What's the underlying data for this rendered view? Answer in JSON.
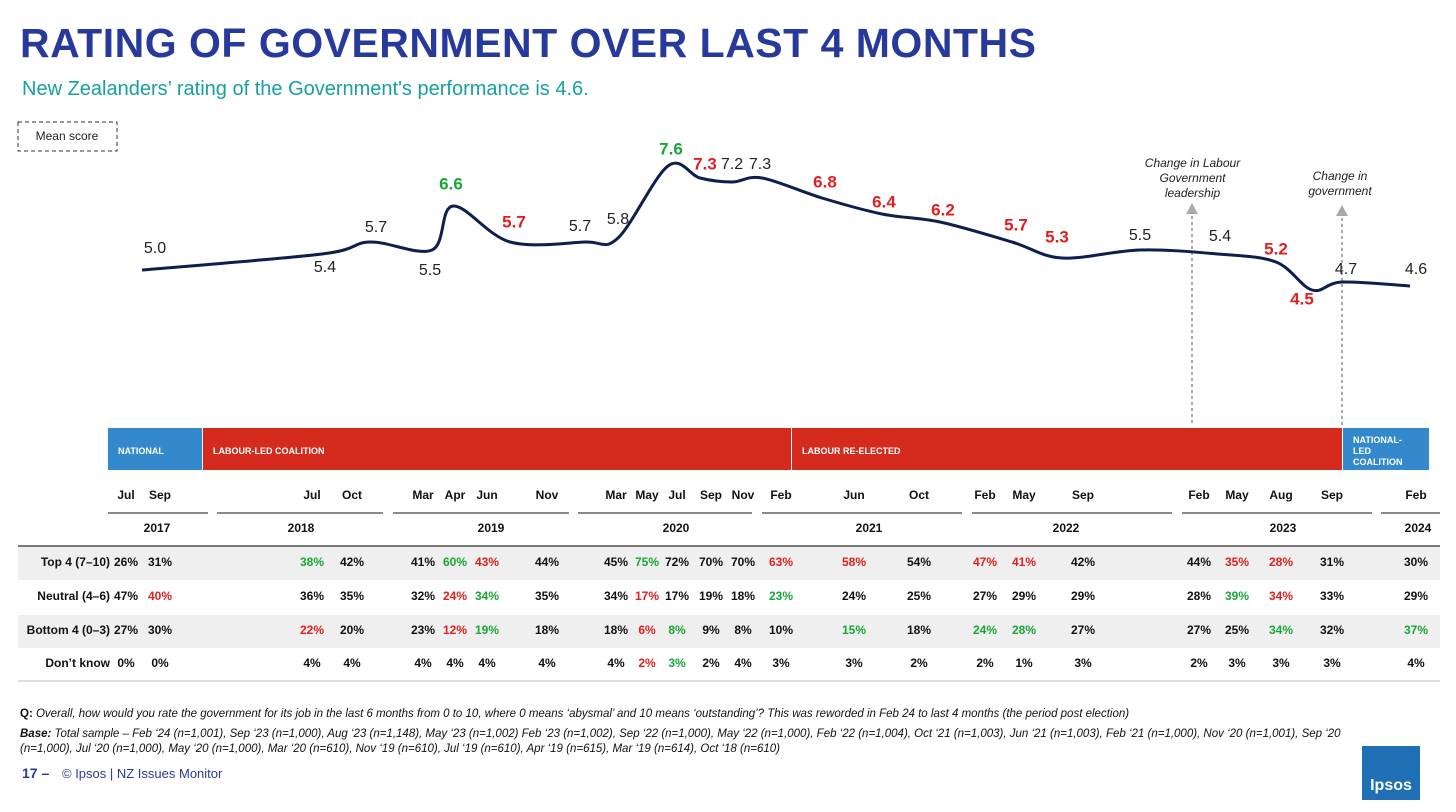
{
  "chart_data": {
    "type": "line",
    "title": "RATING OF GOVERNMENT OVER LAST 4 MONTHS",
    "subtitle": "New Zealanders’ rating of the Government's performance is 4.6.",
    "y_label": "Mean score",
    "values": [
      5.0,
      5.4,
      5.7,
      5.5,
      6.6,
      5.7,
      5.7,
      5.8,
      7.6,
      7.3,
      7.2,
      7.3,
      6.8,
      6.4,
      6.2,
      5.7,
      5.3,
      5.5,
      5.4,
      5.2,
      4.5,
      4.7,
      4.6
    ],
    "value_labels": [
      "5.0",
      "5.4",
      "5.7",
      "5.5",
      "6.6",
      "5.7",
      "5.7",
      "5.8",
      "7.6",
      "7.3",
      "7.2",
      "7.3",
      "6.8",
      "6.4",
      "6.2",
      "5.7",
      "5.3",
      "5.5",
      "5.4",
      "5.2",
      "4.5",
      "4.7",
      "4.6"
    ],
    "label_colors": [
      "#222222",
      "#222222",
      "#222222",
      "#222222",
      "#1aa637",
      "#e02020",
      "#222222",
      "#222222",
      "#1aa637",
      "#e02020",
      "#222222",
      "#222222",
      "#e02020",
      "#e02020",
      "#e02020",
      "#e02020",
      "#e02020",
      "#222222",
      "#222222",
      "#e02020",
      "#e02020",
      "#222222",
      "#222222"
    ],
    "color": "#0d1f4d",
    "annotations": [
      "Change in Labour Government leadership",
      "Change in government"
    ],
    "government_bands": [
      {
        "label": "NATIONAL",
        "color": "#3389cc"
      },
      {
        "label": "LABOUR-LED COALITION",
        "color": "#d52b1e"
      },
      {
        "label": "LABOUR RE-ELECTED",
        "color": "#d52b1e"
      },
      {
        "label": "NATIONAL-LED COALITION",
        "color": "#3389cc"
      }
    ]
  },
  "table": {
    "columns": [
      "Jul",
      "Sep",
      "Jul",
      "Oct",
      "Mar",
      "Apr",
      "Jun",
      "Nov",
      "Mar",
      "May",
      "Jul",
      "Sep",
      "Nov",
      "Feb",
      "Jun",
      "Oct",
      "Feb",
      "May",
      "Sep",
      "Feb",
      "May",
      "Aug",
      "Sep",
      "Feb"
    ],
    "years": [
      "2017",
      "2018",
      "2019",
      "2020",
      "2021",
      "2022",
      "2023",
      "2024"
    ],
    "rows": [
      {
        "label": "Top 4 (7–10)",
        "cells": [
          {
            "text": "26%"
          },
          {
            "text": "31%"
          },
          {
            "text": "38%",
            "color": "#1aa637"
          },
          {
            "text": "42%"
          },
          {
            "text": "41%"
          },
          {
            "text": "60%",
            "color": "#1aa637"
          },
          {
            "text": "43%",
            "color": "#e02020"
          },
          {
            "text": "44%"
          },
          {
            "text": "45%"
          },
          {
            "text": "75%",
            "color": "#1aa637"
          },
          {
            "text": "72%"
          },
          {
            "text": "70%"
          },
          {
            "text": "70%"
          },
          {
            "text": "63%",
            "color": "#e02020"
          },
          {
            "text": "58%",
            "color": "#e02020"
          },
          {
            "text": "54%"
          },
          {
            "text": "47%",
            "color": "#e02020"
          },
          {
            "text": "41%",
            "color": "#e02020"
          },
          {
            "text": "42%"
          },
          {
            "text": "44%"
          },
          {
            "text": "35%",
            "color": "#e02020"
          },
          {
            "text": "28%",
            "color": "#e02020"
          },
          {
            "text": "31%"
          },
          {
            "text": "30%"
          }
        ]
      },
      {
        "label": "Neutral (4–6)",
        "cells": [
          {
            "text": "47%"
          },
          {
            "text": "40%",
            "color": "#e02020"
          },
          {
            "text": "36%"
          },
          {
            "text": "35%"
          },
          {
            "text": "32%"
          },
          {
            "text": "24%",
            "color": "#e02020"
          },
          {
            "text": "34%",
            "color": "#1aa637"
          },
          {
            "text": "35%"
          },
          {
            "text": "34%"
          },
          {
            "text": "17%",
            "color": "#e02020"
          },
          {
            "text": "17%"
          },
          {
            "text": "19%"
          },
          {
            "text": "18%"
          },
          {
            "text": "23%",
            "color": "#1aa637"
          },
          {
            "text": "24%"
          },
          {
            "text": "25%"
          },
          {
            "text": "27%"
          },
          {
            "text": "29%"
          },
          {
            "text": "29%"
          },
          {
            "text": "28%"
          },
          {
            "text": "39%",
            "color": "#1aa637"
          },
          {
            "text": "34%",
            "color": "#e02020"
          },
          {
            "text": "33%"
          },
          {
            "text": "29%"
          }
        ]
      },
      {
        "label": "Bottom 4 (0–3)",
        "cells": [
          {
            "text": "27%"
          },
          {
            "text": "30%"
          },
          {
            "text": "22%",
            "color": "#e02020"
          },
          {
            "text": "20%"
          },
          {
            "text": "23%"
          },
          {
            "text": "12%",
            "color": "#e02020"
          },
          {
            "text": "19%",
            "color": "#1aa637"
          },
          {
            "text": "18%"
          },
          {
            "text": "18%"
          },
          {
            "text": "6%",
            "color": "#e02020"
          },
          {
            "text": "8%",
            "color": "#1aa637"
          },
          {
            "text": "9%"
          },
          {
            "text": "8%"
          },
          {
            "text": "10%"
          },
          {
            "text": "15%",
            "color": "#1aa637"
          },
          {
            "text": "18%"
          },
          {
            "text": "24%",
            "color": "#1aa637"
          },
          {
            "text": "28%",
            "color": "#1aa637"
          },
          {
            "text": "27%"
          },
          {
            "text": "27%"
          },
          {
            "text": "25%"
          },
          {
            "text": "34%",
            "color": "#1aa637"
          },
          {
            "text": "32%"
          },
          {
            "text": "37%",
            "color": "#1aa637"
          }
        ]
      },
      {
        "label": "Don’t know",
        "cells": [
          {
            "text": "0%"
          },
          {
            "text": "0%"
          },
          {
            "text": "4%"
          },
          {
            "text": "4%"
          },
          {
            "text": "4%"
          },
          {
            "text": "4%"
          },
          {
            "text": "4%"
          },
          {
            "text": "4%"
          },
          {
            "text": "4%"
          },
          {
            "text": "2%",
            "color": "#e02020"
          },
          {
            "text": "3%",
            "color": "#1aa637"
          },
          {
            "text": "2%"
          },
          {
            "text": "4%"
          },
          {
            "text": "3%"
          },
          {
            "text": "3%"
          },
          {
            "text": "2%"
          },
          {
            "text": "2%"
          },
          {
            "text": "1%"
          },
          {
            "text": "3%"
          },
          {
            "text": "2%"
          },
          {
            "text": "3%"
          },
          {
            "text": "3%"
          },
          {
            "text": "3%"
          },
          {
            "text": "4%"
          }
        ]
      }
    ]
  },
  "footer": {
    "q_label": "Q:",
    "q_text": "Overall, how would you rate the government for its job in the last 6 months from 0 to 10, where 0 means ‘abysmal’ and 10 means ‘outstanding’? This was reworded in Feb 24 to last 4 months (the period post election)",
    "base_label": "Base:",
    "base_text": "Total sample – Feb ‘24 (n=1,001), Sep ‘23 (n=1,000), Aug ‘23 (n=1,148), May ‘23 (n=1,002) Feb ‘23 (n=1,002), Sep ‘22 (n=1,000), May ‘22 (n=1,000), Feb ‘22 (n=1,004), Oct ‘21 (n=1,003), Jun ‘21 (n=1,003), Feb ‘21 (n=1,000), Nov ‘20 (n=1,001), Sep ‘20 (n=1,000), Jul ‘20 (n=1,000), May ‘20 (n=1,000), Mar ‘20 (n=610), Nov ‘19 (n=610), Jul ‘19 (n=610), Apr ‘19 (n=615), Mar ‘19 (n=614), Oct ‘18 (n=610)",
    "page": "17 –",
    "source": "© Ipsos | NZ Issues Monitor",
    "logo": "Ipsos"
  }
}
